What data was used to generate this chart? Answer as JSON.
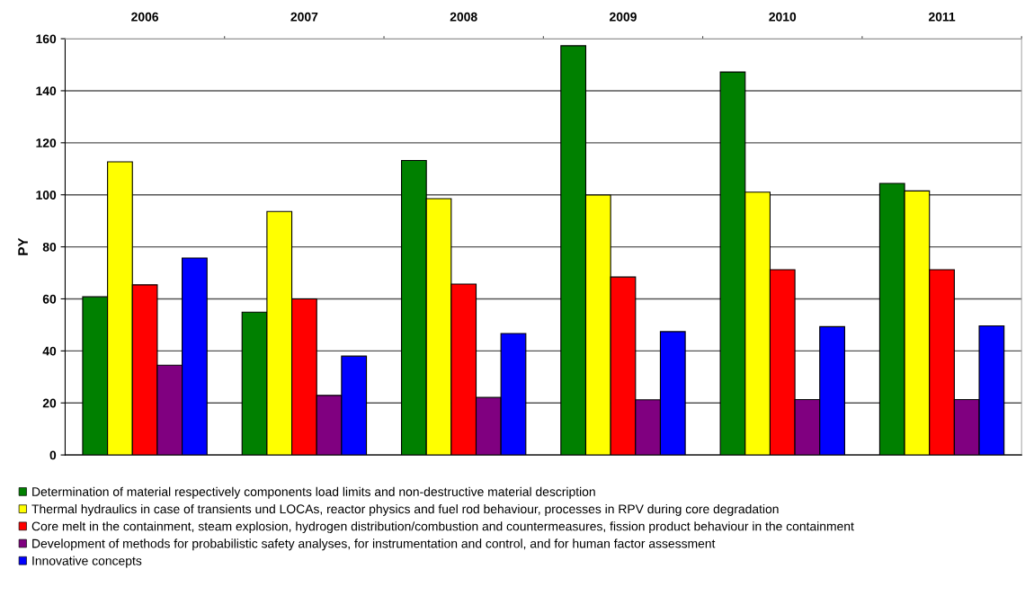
{
  "chart_data": {
    "type": "bar",
    "ylabel": "PY",
    "categories": [
      "2006",
      "2007",
      "2008",
      "2009",
      "2010",
      "2011"
    ],
    "series": [
      {
        "name": "Determination of material respectively components load limits and non-destructive material description",
        "color": "#008000",
        "values": [
          60.8,
          54.9,
          113.2,
          157.3,
          147.2,
          104.4
        ]
      },
      {
        "name": "Thermal hydraulics in case of transients und LOCAs, reactor physics and fuel rod behaviour, processes in RPV during core degradation",
        "color": "#ffff00",
        "values": [
          112.7,
          93.6,
          98.5,
          99.9,
          101.0,
          101.5
        ]
      },
      {
        "name": "Core melt in the containment, steam explosion, hydrogen distribution/combustion and countermeasures, fission product behaviour in the containment",
        "color": "#ff0000",
        "values": [
          65.4,
          60.0,
          65.7,
          68.4,
          71.2,
          71.2
        ]
      },
      {
        "name": "Development of methods for probabilistic safety analyses, for instrumentation and control, and for human factor assessment",
        "color": "#800080",
        "values": [
          34.5,
          22.9,
          22.1,
          21.2,
          21.3,
          21.3
        ]
      },
      {
        "name": "Innovative concepts",
        "color": "#0000ff",
        "values": [
          75.7,
          38.0,
          46.7,
          47.4,
          49.3,
          49.6
        ]
      }
    ],
    "ylim": [
      0,
      160
    ],
    "yticks": [
      0,
      20,
      40,
      60,
      80,
      100,
      120,
      140,
      160
    ],
    "grid": "y",
    "legend": "bottom"
  }
}
